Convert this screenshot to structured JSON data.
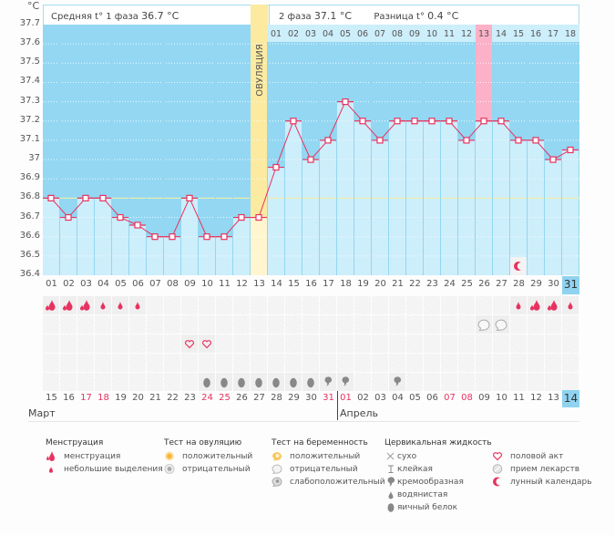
{
  "header": {
    "phase1_label": "Средняя t° 1 фаза",
    "phase1_value": "36.7 °C",
    "phase2_label": "2 фаза",
    "phase2_value": "37.1 °C",
    "diff_label": "Разница t°",
    "diff_value": "0.4 °C"
  },
  "ovulation_label": "ОВУЛЯЦИЯ",
  "colors": {
    "plot_bg": "#93d7f2",
    "bar_fill": "#cdeefb",
    "line": "#e8325f",
    "ovulation": "#fbeaa0",
    "highlight": "#fbb1c7",
    "coverline": "#f5ef9c"
  },
  "chart_data": {
    "type": "bar",
    "title": "",
    "ylabel": "°C",
    "ylim": [
      36.4,
      37.7
    ],
    "yticks": [
      "37.7",
      "37.6",
      "37.5",
      "37.4",
      "37.3",
      "37.2",
      "37.1",
      "37",
      "36.9",
      "36.8",
      "36.7",
      "36.6",
      "36.5",
      "36.4"
    ],
    "coverline": 36.8,
    "ovulation_day": 13,
    "highlight_day": 31,
    "cycle_days": [
      "01",
      "02",
      "03",
      "04",
      "05",
      "06",
      "07",
      "08",
      "09",
      "10",
      "11",
      "12",
      "13",
      "14",
      "15",
      "16",
      "17",
      "18",
      "19",
      "20",
      "21",
      "22",
      "23",
      "24",
      "25",
      "26",
      "27",
      "28",
      "29",
      "30",
      "31"
    ],
    "phase2_days": [
      "01",
      "02",
      "03",
      "04",
      "05",
      "06",
      "07",
      "08",
      "09",
      "10",
      "11",
      "12",
      "13",
      "14",
      "15",
      "16",
      "17",
      "18"
    ],
    "values": [
      36.8,
      36.7,
      36.8,
      36.8,
      36.7,
      36.66,
      36.6,
      36.6,
      36.8,
      36.6,
      36.6,
      36.7,
      36.7,
      36.96,
      37.2,
      37.0,
      37.1,
      37.3,
      37.2,
      37.1,
      37.2,
      37.2,
      37.2,
      37.2,
      37.1,
      37.2,
      37.2,
      37.1,
      37.1,
      37.0,
      37.05
    ],
    "dates": [
      "15",
      "16",
      "17",
      "18",
      "19",
      "20",
      "21",
      "22",
      "23",
      "24",
      "25",
      "26",
      "27",
      "28",
      "29",
      "30",
      "31",
      "01",
      "02",
      "03",
      "04",
      "05",
      "06",
      "07",
      "08",
      "09",
      "10",
      "11",
      "12",
      "13",
      "14"
    ],
    "red_dates": [
      2,
      3,
      9,
      10,
      16,
      17,
      23,
      24
    ],
    "months": [
      "Март",
      "Апрель"
    ]
  },
  "rows": {
    "menstruation": [
      "big",
      "big",
      "big",
      "small",
      "small",
      "small",
      "",
      "",
      "",
      "",
      "",
      "",
      "",
      "",
      "",
      "",
      "",
      "",
      "",
      "",
      "",
      "",
      "",
      "",
      "",
      "",
      "",
      "small",
      "big",
      "big",
      "small"
    ],
    "pregnancy": [
      "",
      "",
      "",
      "",
      "",
      "",
      "",
      "",
      "",
      "",
      "",
      "",
      "",
      "",
      "",
      "",
      "",
      "",
      "",
      "",
      "",
      "",
      "",
      "",
      "",
      "neg",
      "neg",
      "",
      "",
      "",
      ""
    ],
    "intercourse": [
      "",
      "",
      "",
      "",
      "",
      "",
      "",
      "",
      "heart",
      "heart",
      "",
      "",
      "",
      "",
      "",
      "",
      "",
      "",
      "",
      "",
      "",
      "",
      "",
      "",
      "",
      "",
      "",
      "",
      "",
      "",
      ""
    ],
    "empty": [
      "",
      "",
      "",
      "",
      "",
      "",
      "",
      "",
      "",
      "",
      "",
      "",
      "",
      "",
      "",
      "",
      "",
      "",
      "",
      "",
      "",
      "",
      "",
      "",
      "",
      "",
      "",
      "",
      "",
      "",
      ""
    ],
    "fluid": [
      "",
      "",
      "",
      "",
      "",
      "",
      "",
      "",
      "",
      "egg",
      "egg",
      "egg",
      "egg",
      "egg",
      "egg",
      "egg",
      "creamy",
      "creamy",
      "",
      "",
      "creamy",
      "",
      "",
      "",
      "",
      "",
      "",
      "",
      "",
      "",
      ""
    ],
    "moon_day": 28
  },
  "legend": {
    "menstruation": {
      "title": "Менструация",
      "items": [
        "менструация",
        "небольшие выделения"
      ]
    },
    "ovulation_test": {
      "title": "Тест на овуляцию",
      "items": [
        "положительный",
        "отрицательный"
      ]
    },
    "pregnancy_test": {
      "title": "Тест на беременность",
      "items": [
        "положительный",
        "отрицательный",
        "слабоположительный"
      ]
    },
    "cervical_fluid": {
      "title": "Цервикальная жидкость",
      "items": [
        "сухо",
        "клейкая",
        "кремообразная",
        "водянистая",
        "яичный белок"
      ]
    },
    "other": {
      "items": [
        "половой акт",
        "прием лекарств",
        "лунный календарь"
      ]
    }
  }
}
